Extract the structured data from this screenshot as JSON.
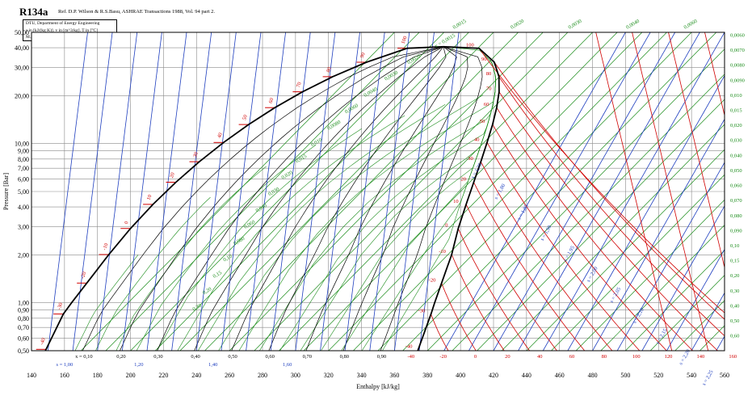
{
  "title": "R134a",
  "reference": "Ref. D.P. Wilson & R.S.Basu, ASHRAE Transactions 1988, Vol. 94 part 2.",
  "info_lines": [
    "DTU, Department of Energy Engineering",
    "s in [kJ/(kg K)]. v in [m^3/kg]. T in [°C]",
    "M.J. Skovrup & H.J.H Knudsen. 17-07-30"
  ],
  "chart_data": {
    "type": "line",
    "fluid": "R134a",
    "xlabel": "Enthalpy [kJ/kg]",
    "ylabel": "Pressure [Bar]",
    "x_scale": "linear",
    "y_scale": "log",
    "xlim": [
      140,
      560
    ],
    "ylim": [
      0.5,
      50
    ],
    "x_ticks": [
      "140",
      "160",
      "180",
      "200",
      "220",
      "240",
      "260",
      "280",
      "300",
      "320",
      "340",
      "360",
      "380",
      "400",
      "420",
      "440",
      "460",
      "480",
      "500",
      "520",
      "540",
      "560"
    ],
    "y_ticks": [
      "0,50",
      "0,60",
      "0,70",
      "0,80",
      "0,90",
      "1,00",
      "2,00",
      "3,00",
      "4,00",
      "5,00",
      "6,00",
      "7,00",
      "8,00",
      "9,00",
      "10,00",
      "20,00",
      "30,00",
      "40,00",
      "50,00"
    ],
    "grid": true,
    "saturation_dome": {
      "liquid_line": [
        [
          148.4,
          0.5
        ],
        [
          159.3,
          0.85
        ],
        [
          164.3,
          1.0
        ],
        [
          180.3,
          1.64
        ],
        [
          186.7,
          2.0
        ],
        [
          200.0,
          2.93
        ],
        [
          213.6,
          4.15
        ],
        [
          227.5,
          5.72
        ],
        [
          241.7,
          7.7
        ],
        [
          256.4,
          10.17
        ],
        [
          271.6,
          13.18
        ],
        [
          287.5,
          16.82
        ],
        [
          304.3,
          21.16
        ],
        [
          322.5,
          26.33
        ],
        [
          343.0,
          32.43
        ],
        [
          367.8,
          39.72
        ],
        [
          389.6,
          40.6
        ]
      ],
      "vapor_line": [
        [
          374.1,
          0.5
        ],
        [
          382.1,
          0.85
        ],
        [
          384.3,
          1.0
        ],
        [
          391.6,
          1.64
        ],
        [
          394.6,
          2.0
        ],
        [
          398.6,
          2.93
        ],
        [
          403.4,
          4.15
        ],
        [
          408.0,
          5.72
        ],
        [
          412.3,
          7.7
        ],
        [
          416.1,
          10.17
        ],
        [
          419.4,
          13.18
        ],
        [
          421.9,
          16.82
        ],
        [
          423.4,
          21.16
        ],
        [
          423.3,
          26.33
        ],
        [
          420.5,
          32.43
        ],
        [
          411.2,
          39.72
        ],
        [
          389.6,
          40.6
        ]
      ],
      "critical_point": [
        389.6,
        40.6
      ]
    },
    "quality_labels": [
      "x = 0,10",
      "0,20",
      "0,30",
      "0,40",
      "0,50",
      "0,60",
      "0,70",
      "0,80",
      "0,90"
    ],
    "entropy_labels_bottom": [
      "s = 1,00",
      "1,20",
      "1,40",
      "1,60"
    ],
    "entropy_labels_superheat": [
      "s = 1,75",
      "s = 1,80",
      "s = 1,85",
      "s = 1,90",
      "s = 1,95",
      "s = 2,00",
      "s = 2,05",
      "s = 2,10",
      "s = 2,15",
      "s = 2,20",
      "s = 2,25"
    ],
    "temperature_labels_liquid": [
      "-40",
      "-30",
      "-20",
      "-10",
      "0",
      "10",
      "20",
      "30",
      "40",
      "50",
      "60",
      "70",
      "80",
      "90",
      "100"
    ],
    "temperature_labels_vapor": [
      "-40",
      "-30",
      "-20",
      "-10",
      "0",
      "10",
      "20",
      "30",
      "40",
      "50",
      "60",
      "70",
      "80",
      "90",
      "100"
    ],
    "temperature_labels_bottom": [
      "-40",
      "-20",
      "0",
      "20",
      "40",
      "60",
      "80",
      "100",
      "120",
      "140",
      "160"
    ],
    "volume_labels_dome": [
      "v = 0,0015",
      "0,0020",
      "0,0030",
      "0,0040",
      "0,0060",
      "0,0080",
      "0,010",
      "0,015",
      "0,020",
      "0,030",
      "0,040",
      "0,060",
      "0,080",
      "0,10",
      "0,15",
      "0,20",
      "0,30"
    ],
    "volume_labels_top": [
      "0,0015",
      "0,0020",
      "0,0030",
      "0,0040",
      "0,0060"
    ],
    "volume_labels_right": [
      "0,0060",
      "0,0070",
      "0,0080",
      "0,0090",
      "0,010",
      "0,015",
      "0,020",
      "0,030",
      "0,040",
      "0,050",
      "0,060",
      "0,070",
      "0,080",
      "0,090",
      "0,10",
      "0,15",
      "0,20",
      "0,30",
      "0,40",
      "0,50",
      "0,60"
    ]
  },
  "colors": {
    "isotherm": "#d00000",
    "isentrope": "#1f3fbf",
    "isochore": "#1a8c1a",
    "saturation": "#000000"
  }
}
